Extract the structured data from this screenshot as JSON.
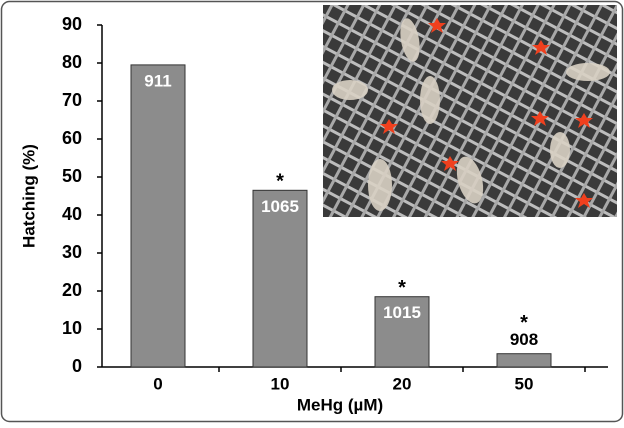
{
  "chart_data": {
    "type": "bar",
    "y_label": "Hatching (%)",
    "x_label": "MeHg (µM)",
    "categories": [
      "0",
      "10",
      "20",
      "50"
    ],
    "values": [
      79.5,
      46.5,
      18.5,
      3.5
    ],
    "bar_annotations": [
      911,
      1065,
      1015,
      908
    ],
    "significance_marks": [
      null,
      "*",
      "*",
      "*"
    ],
    "color": "#8c8c8c",
    "ylim": [
      0,
      90
    ],
    "yticks": [
      0,
      10,
      20,
      30,
      40,
      50,
      60,
      70,
      80,
      90
    ],
    "grid": false
  }
}
